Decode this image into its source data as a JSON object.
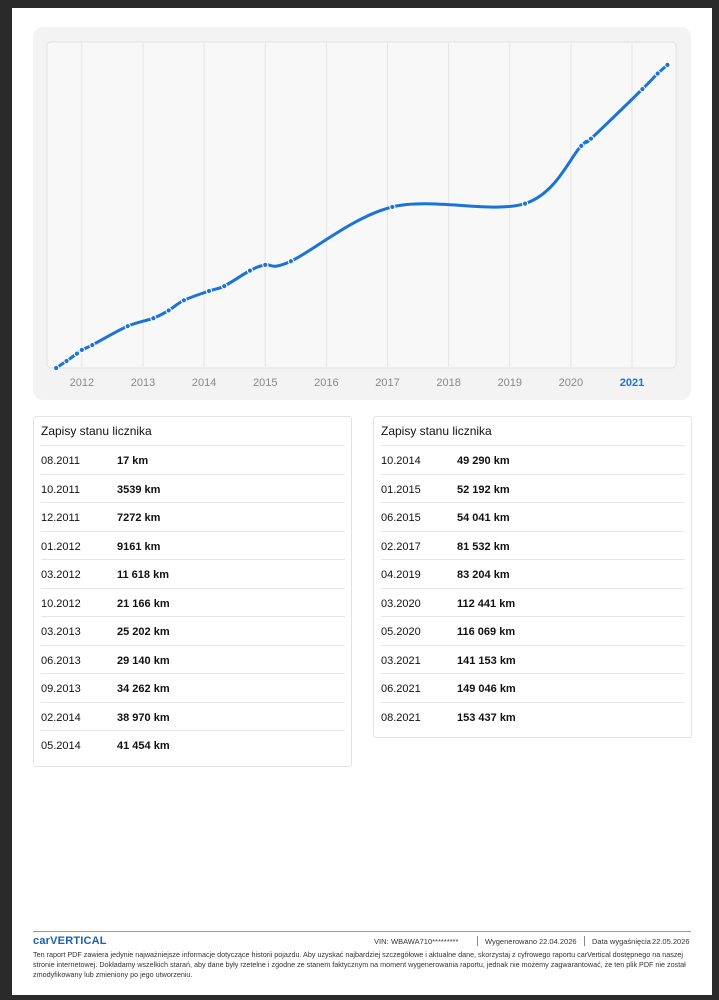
{
  "chart_data": {
    "type": "line",
    "x": [
      2011.58,
      2011.75,
      2011.92,
      2012.0,
      2012.17,
      2012.75,
      2013.17,
      2013.42,
      2013.67,
      2014.08,
      2014.33,
      2014.75,
      2015.0,
      2015.42,
      2017.08,
      2019.25,
      2020.17,
      2020.33,
      2021.17,
      2021.42,
      2021.58
    ],
    "series": [
      {
        "name": "Zapisy stanu licznika",
        "color": "#1a73d9",
        "values": [
          17,
          3539,
          7272,
          9161,
          11618,
          21166,
          25202,
          29140,
          34262,
          38970,
          41454,
          49290,
          52192,
          54041,
          81532,
          83204,
          112441,
          116069,
          141153,
          149046,
          153437
        ]
      }
    ],
    "xlim": [
      2011.43,
      2021.72
    ],
    "xticks": [
      2012,
      2013,
      2014,
      2015,
      2016,
      2017,
      2018,
      2019,
      2020,
      2021
    ],
    "ylim": [
      0,
      165000
    ],
    "grid": true
  },
  "tables": [
    {
      "title": "Zapisy stanu licznika",
      "rows": [
        [
          "08.2011",
          "17 km"
        ],
        [
          "10.2011",
          "3539 km"
        ],
        [
          "12.2011",
          "7272 km"
        ],
        [
          "01.2012",
          "9161 km"
        ],
        [
          "03.2012",
          "11 618 km"
        ],
        [
          "10.2012",
          "21 166 km"
        ],
        [
          "03.2013",
          "25 202 km"
        ],
        [
          "06.2013",
          "29 140 km"
        ],
        [
          "09.2013",
          "34 262 km"
        ],
        [
          "02.2014",
          "38 970 km"
        ],
        [
          "05.2014",
          "41 454 km"
        ]
      ]
    },
    {
      "title": "Zapisy stanu licznika",
      "rows": [
        [
          "10.2014",
          "49 290 km"
        ],
        [
          "01.2015",
          "52 192 km"
        ],
        [
          "06.2015",
          "54 041 km"
        ],
        [
          "02.2017",
          "81 532 km"
        ],
        [
          "04.2019",
          "83 204 km"
        ],
        [
          "03.2020",
          "112 441 km"
        ],
        [
          "05.2020",
          "116 069 km"
        ],
        [
          "03.2021",
          "141 153 km"
        ],
        [
          "06.2021",
          "149 046 km"
        ],
        [
          "08.2021",
          "153 437 km"
        ]
      ]
    }
  ],
  "footer": {
    "logo": "carVERTICAL",
    "vin_label": "VIN:",
    "vin": "WBAWA710*********",
    "generated_label": "Wygenerowano",
    "generated": "22.04.2026",
    "expiry_label": "Data wygaśnięcia",
    "expiry": "22.05.2026",
    "disclaimer": "Ten raport PDF zawiera jedynie najważniejsze informacje dotyczące historii pojazdu. Aby uzyskać najbardziej szczegółowe i aktualne dane, skorzystaj z cyfrowego raportu carVertical dostępnego na naszej stronie internetowej. Dokładamy wszelkich starań, aby dane były rzetelne i zgodne ze stanem faktycznym na moment wygenerowania raportu, jednak nie możemy zagwarantować, że ten plik PDF nie został zmodyfikowany lub zmieniony po jego utworzeniu."
  }
}
